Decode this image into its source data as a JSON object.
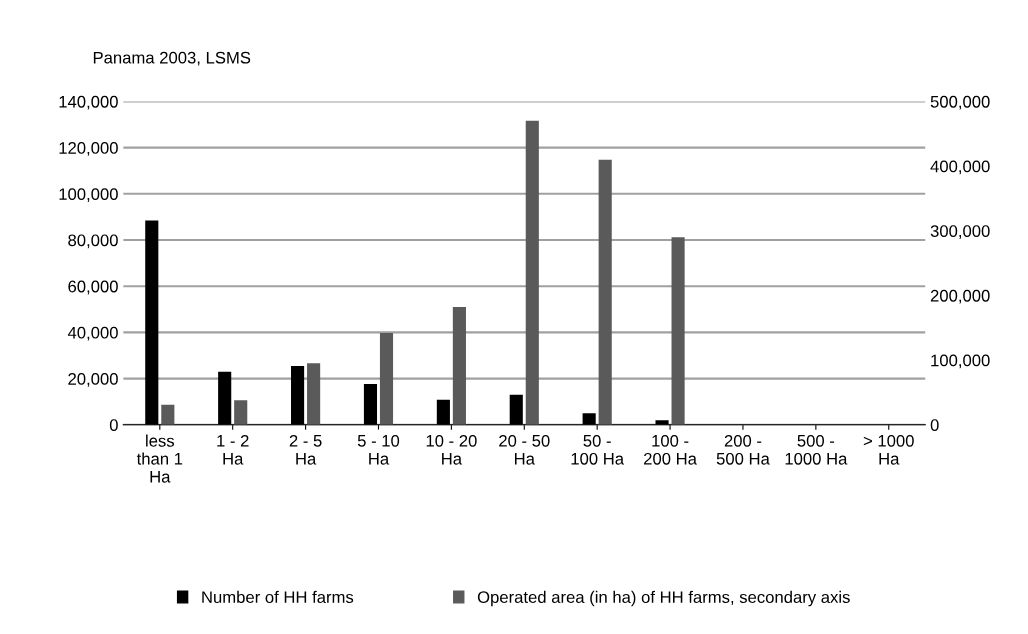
{
  "chart_data": {
    "type": "bar",
    "title": "Panama 2003, LSMS",
    "categories": [
      "less than 1 Ha",
      "1 - 2 Ha",
      "2 - 5 Ha",
      "5 - 10 Ha",
      "10 - 20 Ha",
      "20 - 50 Ha",
      "50 - 100 Ha",
      "100 - 200 Ha",
      "200 - 500 Ha",
      "500 - 1000 Ha",
      "> 1000 Ha"
    ],
    "series": [
      {
        "name": "Number of HH farms",
        "color": "#000000",
        "values": [
          88500,
          23000,
          25500,
          17700,
          10800,
          13000,
          5000,
          2000,
          0,
          0,
          0
        ]
      },
      {
        "name": "Operated area (in ha) of HH farms, secondary axis",
        "color": "#5a5a5a",
        "axis": "y2",
        "values": [
          31000,
          38000,
          95000,
          142000,
          182000,
          470000,
          410000,
          290000,
          0,
          0,
          0
        ]
      }
    ],
    "ylim": [
      0,
      140000
    ],
    "yticks": [
      {
        "value": 0,
        "label": "0"
      },
      {
        "value": 20000,
        "label": "20,000"
      },
      {
        "value": 40000,
        "label": "40,000"
      },
      {
        "value": 60000,
        "label": "60,000"
      },
      {
        "value": 80000,
        "label": "80,000"
      },
      {
        "value": 100000,
        "label": "100,000"
      },
      {
        "value": 120000,
        "label": "120,000"
      },
      {
        "value": 140000,
        "label": "140,000"
      }
    ],
    "y2lim": [
      0,
      500000
    ],
    "y2ticks": [
      {
        "value": 0,
        "label": "0"
      },
      {
        "value": 100000,
        "label": "100,000"
      },
      {
        "value": 200000,
        "label": "200,000"
      },
      {
        "value": 300000,
        "label": "300,000"
      },
      {
        "value": 400000,
        "label": "400,000"
      },
      {
        "value": 500000,
        "label": "500,000"
      }
    ],
    "grid": "y",
    "legend": "bottom"
  }
}
